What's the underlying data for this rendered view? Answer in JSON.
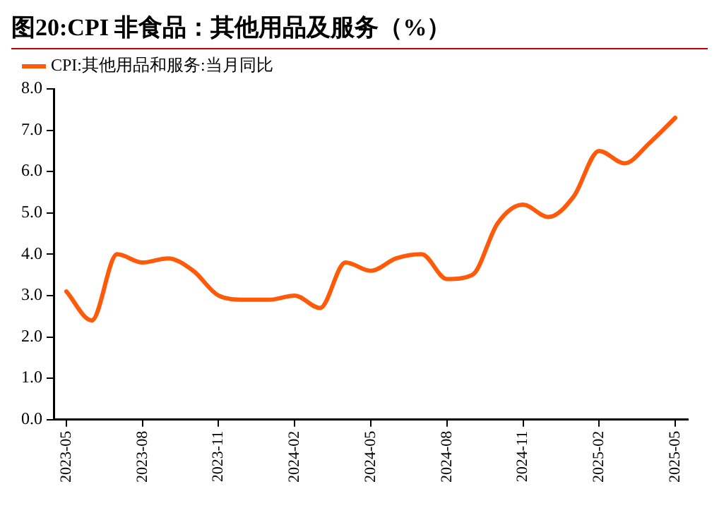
{
  "chart_data": {
    "type": "line",
    "title": "图20:CPI 非食品：其他用品及服务（%）",
    "categories": [
      "2023-05",
      null,
      null,
      "2023-08",
      null,
      null,
      "2023-11",
      null,
      null,
      "2024-02",
      null,
      null,
      "2024-05",
      null,
      null,
      "2024-08",
      null,
      null,
      "2024-11",
      null,
      null,
      "2025-02",
      null,
      null,
      "2025-05"
    ],
    "series": [
      {
        "name": "CPI:其他用品和服务:当月同比",
        "color": "#ff5a0a",
        "values": [
          3.1,
          2.4,
          4.0,
          3.8,
          3.9,
          3.6,
          3.0,
          2.9,
          2.9,
          3.0,
          2.7,
          3.8,
          3.6,
          3.9,
          4.0,
          3.4,
          3.5,
          4.75,
          5.2,
          4.9,
          5.4,
          6.5,
          6.2,
          6.7,
          7.3
        ]
      }
    ],
    "ylim": [
      0,
      8
    ],
    "yticks": [
      {
        "value": 0,
        "label": "0.0"
      },
      {
        "value": 1,
        "label": "1.0"
      },
      {
        "value": 2,
        "label": "2.0"
      },
      {
        "value": 3,
        "label": "3.0"
      },
      {
        "value": 4,
        "label": "4.0"
      },
      {
        "value": 5,
        "label": "5.0"
      },
      {
        "value": 6,
        "label": "6.0"
      },
      {
        "value": 7,
        "label": "7.0"
      },
      {
        "value": 8,
        "label": "8.0"
      }
    ],
    "grid": false,
    "legend": "top left",
    "marker": "none",
    "line_style": "solid"
  }
}
